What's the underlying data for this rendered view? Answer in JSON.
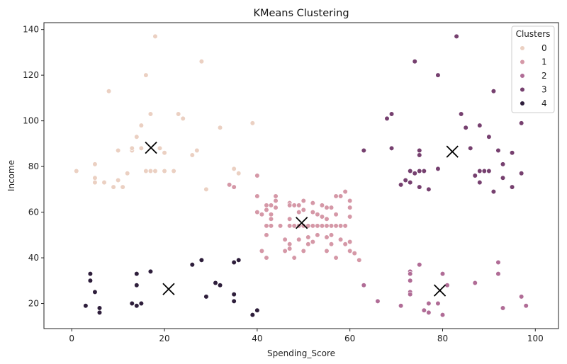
{
  "chart_data": {
    "type": "scatter",
    "title": "KMeans Clustering",
    "xlabel": "Spending_Score",
    "ylabel": "Income",
    "xlim": [
      -6,
      105
    ],
    "ylim": [
      9,
      143
    ],
    "xticks": [
      0,
      20,
      40,
      60,
      80,
      100
    ],
    "yticks": [
      20,
      40,
      60,
      80,
      100,
      120,
      140
    ],
    "grid": false,
    "legend": {
      "title": "Clusters",
      "position": "top-right"
    },
    "colors": {
      "0": "#ebd0c2",
      "1": "#d598a7",
      "2": "#b06c96",
      "3": "#76406f",
      "4": "#2e1e3b"
    },
    "series": [
      {
        "name": "0",
        "points": [
          [
            1,
            78
          ],
          [
            5,
            81
          ],
          [
            5,
            75
          ],
          [
            5,
            73
          ],
          [
            7,
            73
          ],
          [
            8,
            113
          ],
          [
            9,
            71
          ],
          [
            10,
            87
          ],
          [
            10,
            74
          ],
          [
            11,
            71
          ],
          [
            12,
            77
          ],
          [
            13,
            87
          ],
          [
            13,
            88
          ],
          [
            14,
            93
          ],
          [
            15,
            98
          ],
          [
            15,
            88
          ],
          [
            16,
            120
          ],
          [
            16,
            78
          ],
          [
            17,
            78
          ],
          [
            17,
            103
          ],
          [
            18,
            78
          ],
          [
            18,
            137
          ],
          [
            19,
            88
          ],
          [
            20,
            86
          ],
          [
            20,
            78
          ],
          [
            22,
            78
          ],
          [
            23,
            103
          ],
          [
            24,
            101
          ],
          [
            26,
            85
          ],
          [
            27,
            87
          ],
          [
            28,
            126
          ],
          [
            29,
            70
          ],
          [
            32,
            97
          ],
          [
            35,
            79
          ],
          [
            36,
            77
          ],
          [
            39,
            99
          ]
        ]
      },
      {
        "name": "1",
        "points": [
          [
            34,
            72
          ],
          [
            35,
            71
          ],
          [
            40,
            76
          ],
          [
            40,
            67
          ],
          [
            40,
            60
          ],
          [
            41,
            59
          ],
          [
            41,
            43
          ],
          [
            42,
            63
          ],
          [
            42,
            61
          ],
          [
            42,
            54
          ],
          [
            42,
            50
          ],
          [
            42,
            40
          ],
          [
            43,
            63
          ],
          [
            43,
            59
          ],
          [
            43,
            57
          ],
          [
            43,
            54
          ],
          [
            44,
            67
          ],
          [
            44,
            65
          ],
          [
            44,
            62
          ],
          [
            45,
            54
          ],
          [
            46,
            43
          ],
          [
            46,
            48
          ],
          [
            47,
            64
          ],
          [
            47,
            63
          ],
          [
            47,
            57
          ],
          [
            47,
            54
          ],
          [
            47,
            46
          ],
          [
            47,
            44
          ],
          [
            48,
            63
          ],
          [
            48,
            54
          ],
          [
            48,
            40
          ],
          [
            49,
            63
          ],
          [
            49,
            60
          ],
          [
            49,
            54
          ],
          [
            49,
            48
          ],
          [
            50,
            65
          ],
          [
            50,
            61
          ],
          [
            50,
            54
          ],
          [
            50,
            43
          ],
          [
            51,
            54
          ],
          [
            51,
            49
          ],
          [
            51,
            46
          ],
          [
            52,
            64
          ],
          [
            52,
            60
          ],
          [
            52,
            54
          ],
          [
            52,
            47
          ],
          [
            53,
            59
          ],
          [
            53,
            54
          ],
          [
            53,
            50
          ],
          [
            54,
            63
          ],
          [
            54,
            58
          ],
          [
            54,
            54
          ],
          [
            55,
            62
          ],
          [
            55,
            57
          ],
          [
            55,
            54
          ],
          [
            55,
            49
          ],
          [
            55,
            43
          ],
          [
            56,
            62
          ],
          [
            56,
            54
          ],
          [
            56,
            50
          ],
          [
            56,
            46
          ],
          [
            57,
            67
          ],
          [
            57,
            59
          ],
          [
            57,
            54
          ],
          [
            57,
            40
          ],
          [
            58,
            67
          ],
          [
            58,
            54
          ],
          [
            58,
            48
          ],
          [
            59,
            69
          ],
          [
            59,
            54
          ],
          [
            59,
            46
          ],
          [
            60,
            65
          ],
          [
            60,
            62
          ],
          [
            60,
            58
          ],
          [
            60,
            47
          ],
          [
            60,
            43
          ],
          [
            61,
            42
          ],
          [
            62,
            39
          ]
        ]
      },
      {
        "name": "2",
        "points": [
          [
            63,
            28
          ],
          [
            66,
            21
          ],
          [
            71,
            19
          ],
          [
            73,
            34
          ],
          [
            73,
            33
          ],
          [
            73,
            30
          ],
          [
            73,
            25
          ],
          [
            73,
            24
          ],
          [
            75,
            37
          ],
          [
            76,
            17
          ],
          [
            77,
            20
          ],
          [
            77,
            16
          ],
          [
            79,
            20
          ],
          [
            80,
            15
          ],
          [
            80,
            33
          ],
          [
            81,
            28
          ],
          [
            87,
            29
          ],
          [
            92,
            38
          ],
          [
            92,
            33
          ],
          [
            93,
            18
          ],
          [
            97,
            23
          ],
          [
            98,
            19
          ]
        ]
      },
      {
        "name": "3",
        "points": [
          [
            63,
            87
          ],
          [
            68,
            101
          ],
          [
            69,
            103
          ],
          [
            69,
            88
          ],
          [
            71,
            72
          ],
          [
            72,
            74
          ],
          [
            73,
            78
          ],
          [
            73,
            73
          ],
          [
            74,
            77
          ],
          [
            74,
            126
          ],
          [
            75,
            87
          ],
          [
            75,
            85
          ],
          [
            75,
            78
          ],
          [
            75,
            71
          ],
          [
            76,
            78
          ],
          [
            77,
            70
          ],
          [
            79,
            79
          ],
          [
            79,
            120
          ],
          [
            83,
            137
          ],
          [
            84,
            103
          ],
          [
            85,
            97
          ],
          [
            86,
            88
          ],
          [
            87,
            76
          ],
          [
            88,
            98
          ],
          [
            88,
            78
          ],
          [
            88,
            73
          ],
          [
            89,
            78
          ],
          [
            90,
            78
          ],
          [
            90,
            93
          ],
          [
            91,
            113
          ],
          [
            91,
            69
          ],
          [
            92,
            87
          ],
          [
            93,
            81
          ],
          [
            93,
            75
          ],
          [
            95,
            86
          ],
          [
            95,
            71
          ],
          [
            97,
            99
          ],
          [
            97,
            77
          ]
        ]
      },
      {
        "name": "4",
        "points": [
          [
            3,
            19
          ],
          [
            4,
            33
          ],
          [
            4,
            30
          ],
          [
            5,
            25
          ],
          [
            6,
            18
          ],
          [
            6,
            16
          ],
          [
            13,
            20
          ],
          [
            14,
            33
          ],
          [
            14,
            28
          ],
          [
            14,
            19
          ],
          [
            15,
            20
          ],
          [
            17,
            34
          ],
          [
            26,
            37
          ],
          [
            28,
            39
          ],
          [
            29,
            23
          ],
          [
            31,
            29
          ],
          [
            32,
            28
          ],
          [
            35,
            38
          ],
          [
            35,
            24
          ],
          [
            35,
            21
          ],
          [
            36,
            39
          ],
          [
            39,
            15
          ],
          [
            40,
            17
          ]
        ]
      }
    ],
    "centroids": [
      [
        17.1,
        88.2
      ],
      [
        49.6,
        55.3
      ],
      [
        79.4,
        25.7
      ],
      [
        82.1,
        86.5
      ],
      [
        20.9,
        26.3
      ]
    ]
  }
}
